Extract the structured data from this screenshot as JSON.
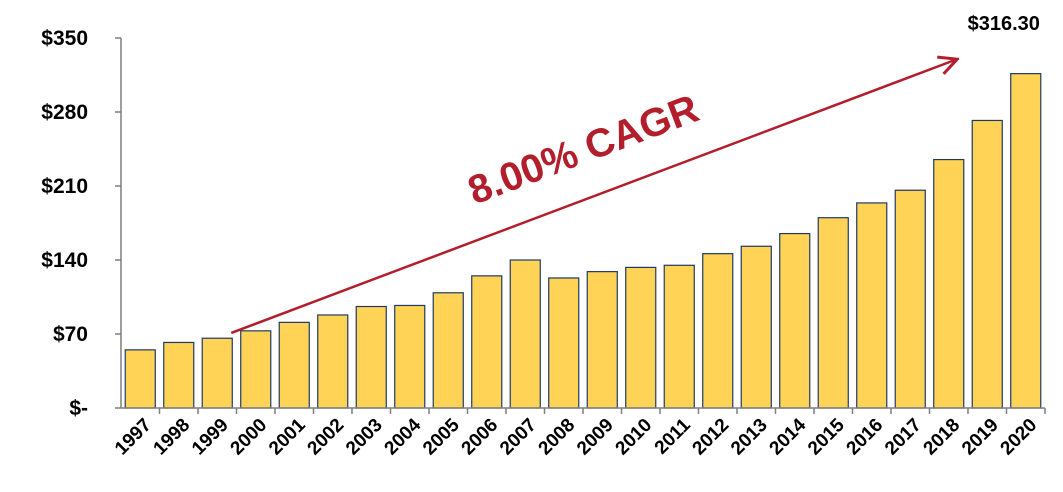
{
  "chart_data": {
    "type": "bar",
    "categories": [
      "1997",
      "1998",
      "1999",
      "2000",
      "2001",
      "2002",
      "2003",
      "2004",
      "2005",
      "2006",
      "2007",
      "2008",
      "2009",
      "2010",
      "2011",
      "2012",
      "2013",
      "2014",
      "2015",
      "2016",
      "2017",
      "2018",
      "2019",
      "2020"
    ],
    "values": [
      55,
      62,
      66,
      73,
      81,
      88,
      96,
      97,
      109,
      125,
      140,
      123,
      129,
      133,
      135,
      146,
      153,
      165,
      180,
      194,
      206,
      235,
      272,
      316.3
    ],
    "ylim": [
      0,
      350
    ],
    "yticks": [
      0,
      70,
      140,
      210,
      280,
      350
    ],
    "ytick_labels": [
      "$-",
      "$70",
      "$140",
      "$210",
      "$280",
      "$350"
    ],
    "data_labels": [
      {
        "category": "2020",
        "text": "$316.30"
      }
    ],
    "annotation": {
      "text": "8.00% CAGR",
      "from_category": "1999",
      "from_value": 71,
      "to_category": "2019",
      "to_value": 330
    },
    "grid": false,
    "legend": "none",
    "bar_color": "#FFD456",
    "bar_edge_color": "#1F3864",
    "annotation_color": "#B21E2B"
  }
}
